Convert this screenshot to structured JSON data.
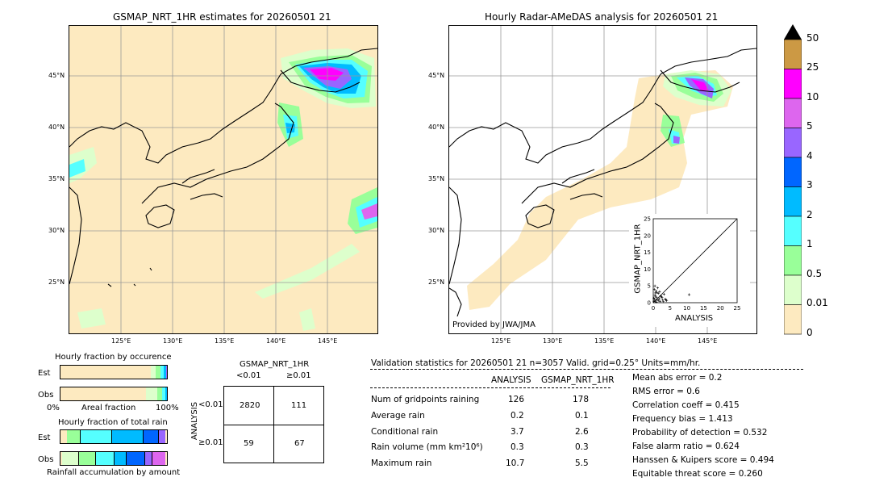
{
  "maps": {
    "left_title": "GSMAP_NRT_1HR estimates for 20260501 21",
    "right_title": "Hourly Radar-AMeDAS analysis for 20260501 21",
    "lat_labels": [
      "45°N",
      "40°N",
      "35°N",
      "30°N",
      "25°N"
    ],
    "lon_labels": [
      "125°E",
      "130°E",
      "135°E",
      "140°E",
      "145°E"
    ],
    "provided_by": "Provided by JWA/JMA"
  },
  "colorbar": {
    "labels": [
      "50",
      "25",
      "10",
      "5",
      "4",
      "3",
      "2",
      "1",
      "0.5",
      "0.01",
      "0"
    ],
    "colors": [
      "#cc9944",
      "#ff00ff",
      "#dd66ee",
      "#9966ff",
      "#0066ff",
      "#00bbff",
      "#55ffff",
      "#99ff99",
      "#ddffcc",
      "#fdeac0"
    ]
  },
  "scatter": {
    "xlabel": "ANALYSIS",
    "ylabel": "GSMAP_NRT_1HR",
    "ticks": [
      "0",
      "5",
      "10",
      "15",
      "20",
      "25"
    ]
  },
  "fraction": {
    "occ_title": "Hourly fraction by occurence",
    "total_title": "Hourly fraction of total rain",
    "est_label": "Est",
    "obs_label": "Obs",
    "axis_left": "0%",
    "axis_mid": "Areal fraction",
    "axis_right": "100%",
    "bottom_caption": "Rainfall accumulation by amount"
  },
  "contingency": {
    "title": "GSMAP_NRT_1HR",
    "col_lt": "<0.01",
    "col_ge": "≥0.01",
    "row_axis": "ANALYSIS",
    "row_lt": "<0.01",
    "row_ge": "≥0.01",
    "cells": [
      "2820",
      "111",
      "59",
      "67"
    ]
  },
  "validation": {
    "header": "Validation statistics for 20260501 21  n=3057 Valid. grid=0.25° Units=mm/hr.",
    "col_analysis": "ANALYSIS",
    "col_gsmap": "GSMAP_NRT_1HR",
    "rows": [
      {
        "label": "Num of gridpoints raining",
        "analysis": "126",
        "gsmap": "178"
      },
      {
        "label": "Average rain",
        "analysis": "0.2",
        "gsmap": "0.1"
      },
      {
        "label": "Conditional rain",
        "analysis": "3.7",
        "gsmap": "2.6"
      },
      {
        "label": "Rain volume (mm km²10⁶)",
        "analysis": "0.3",
        "gsmap": "0.3"
      },
      {
        "label": "Maximum rain",
        "analysis": "10.7",
        "gsmap": "5.5"
      }
    ],
    "scores": [
      "Mean abs error =    0.2",
      "RMS error =    0.6",
      "Correlation coeff =  0.415",
      "Frequency bias =  1.413",
      "Probability of detection =  0.532",
      "False alarm ratio =  0.624",
      "Hanssen & Kuipers score =  0.494",
      "Equitable threat score =  0.260"
    ]
  },
  "chart_data": {
    "type": "scatter",
    "xlabel": "ANALYSIS",
    "ylabel": "GSMAP_NRT_1HR",
    "xlim": [
      0,
      25
    ],
    "ylim": [
      0,
      25
    ],
    "x": [
      0.2,
      0.4,
      0.5,
      0.6,
      0.8,
      1.0,
      1.2,
      1.5,
      1.8,
      2.0,
      2.4,
      2.8,
      3.2,
      3.6,
      4.0,
      0.3,
      0.7,
      1.1,
      1.6,
      2.2,
      3.0,
      0.5,
      1.3,
      0.9,
      10.7,
      0.2,
      0.6,
      1.9,
      2.6,
      3.8
    ],
    "y": [
      0.3,
      1.0,
      2.2,
      0.5,
      3.5,
      1.5,
      0.8,
      2.8,
      1.2,
      0.4,
      1.8,
      0.9,
      2.5,
      1.1,
      0.6,
      4.0,
      1.9,
      3.0,
      0.7,
      2.0,
      0.3,
      5.0,
      4.4,
      0.2,
      2.4,
      1.4,
      2.9,
      3.3,
      1.6,
      0.8
    ]
  }
}
